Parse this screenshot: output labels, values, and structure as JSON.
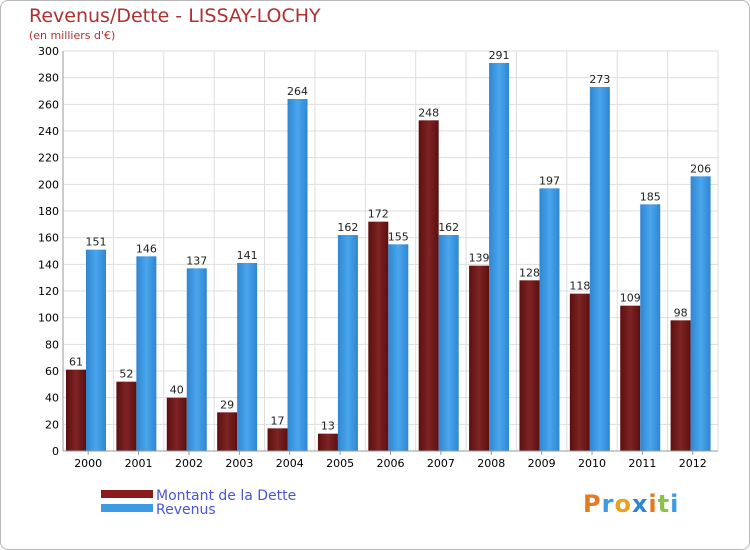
{
  "title": "Revenus/Dette - LISSAY-LOCHY",
  "subtitle": "(en milliers d'€)",
  "logo": "Proxiti",
  "colors": {
    "dette": "#8b1a1a",
    "revenus": "#3d9be6",
    "grid": "#dddddd",
    "title": "#b03030"
  },
  "chart_data": {
    "type": "bar",
    "categories": [
      "2000",
      "2001",
      "2002",
      "2003",
      "2004",
      "2005",
      "2006",
      "2007",
      "2008",
      "2009",
      "2010",
      "2011",
      "2012"
    ],
    "series": [
      {
        "name": "Montant de la Dette",
        "values": [
          61,
          52,
          40,
          29,
          17,
          13,
          172,
          248,
          139,
          128,
          118,
          109,
          98
        ]
      },
      {
        "name": "Revenus",
        "values": [
          151,
          146,
          137,
          141,
          264,
          162,
          155,
          162,
          291,
          197,
          273,
          185,
          206
        ]
      }
    ],
    "yticks": [
      0,
      20,
      40,
      60,
      80,
      100,
      120,
      140,
      160,
      180,
      200,
      220,
      240,
      260,
      280,
      300
    ],
    "ylim": [
      0,
      300
    ],
    "grid": true,
    "legend_position": "bottom-left"
  }
}
